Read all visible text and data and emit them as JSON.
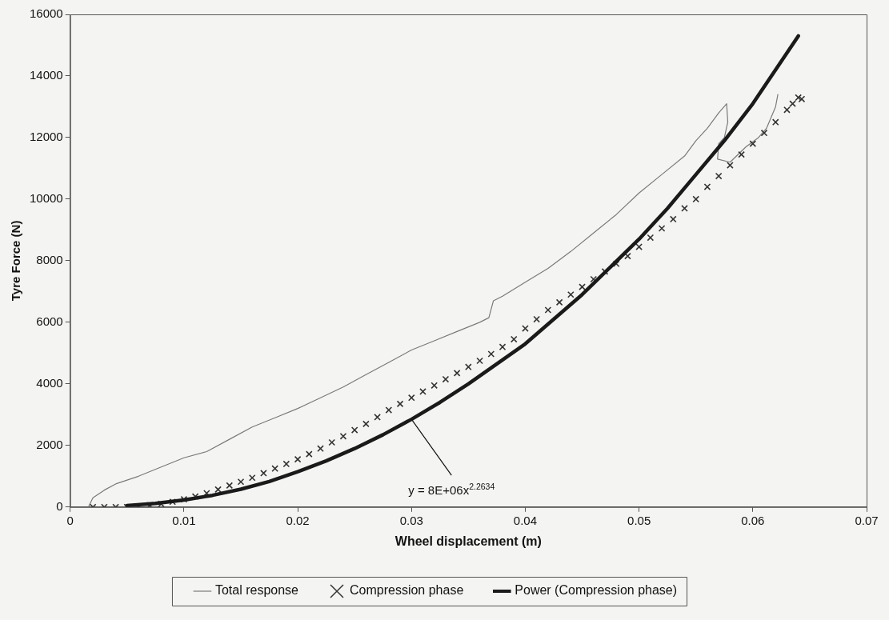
{
  "chart_data": {
    "type": "line",
    "xlabel": "Wheel displacement (m)",
    "ylabel": "Tyre Force (N)",
    "xlim": [
      0,
      0.07
    ],
    "xticks": [
      0,
      0.01,
      0.02,
      0.03,
      0.04,
      0.05,
      0.06,
      0.07
    ],
    "ylim": [
      0,
      16000
    ],
    "yticks": [
      0,
      2000,
      4000,
      6000,
      8000,
      10000,
      12000,
      14000,
      16000
    ],
    "legend": "bottom",
    "annotations": [
      {
        "text": "y = 8E+06x$^{2.2634}$",
        "x": 0.03,
        "y": 2850
      }
    ],
    "series": [
      {
        "name": "Total response",
        "color": "#7a7a7a",
        "marker": "none",
        "x": [
          0.0016,
          0.002,
          0.003,
          0.004,
          0.006,
          0.008,
          0.01,
          0.012,
          0.014,
          0.016,
          0.018,
          0.02,
          0.022,
          0.024,
          0.026,
          0.028,
          0.03,
          0.032,
          0.034,
          0.036,
          0.0368,
          0.0372,
          0.038,
          0.04,
          0.042,
          0.044,
          0.046,
          0.048,
          0.05,
          0.052,
          0.054,
          0.055,
          0.056,
          0.057,
          0.0577,
          0.0578,
          0.0575,
          0.057,
          0.0569,
          0.058,
          0.0594,
          0.0605,
          0.0612,
          0.062,
          0.0622
        ],
        "values": [
          0,
          300,
          550,
          750,
          1000,
          1300,
          1600,
          1800,
          2200,
          2600,
          2900,
          3200,
          3550,
          3900,
          4300,
          4700,
          5100,
          5400,
          5700,
          6000,
          6150,
          6700,
          6850,
          7300,
          7750,
          8300,
          8900,
          9500,
          10200,
          10800,
          11400,
          11900,
          12300,
          12800,
          13100,
          12500,
          12000,
          11800,
          11300,
          11200,
          11700,
          12000,
          12300,
          13000,
          13400
        ]
      },
      {
        "name": "Compression phase",
        "type": "scatter",
        "color": "#333333",
        "marker": "cross",
        "x": [
          0.002,
          0.003,
          0.004,
          0.005,
          0.006,
          0.007,
          0.008,
          0.009,
          0.01,
          0.011,
          0.012,
          0.013,
          0.014,
          0.015,
          0.016,
          0.017,
          0.018,
          0.019,
          0.02,
          0.021,
          0.022,
          0.023,
          0.024,
          0.025,
          0.026,
          0.027,
          0.028,
          0.029,
          0.03,
          0.031,
          0.032,
          0.033,
          0.034,
          0.035,
          0.036,
          0.037,
          0.038,
          0.039,
          0.04,
          0.041,
          0.042,
          0.043,
          0.044,
          0.045,
          0.046,
          0.047,
          0.048,
          0.049,
          0.05,
          0.051,
          0.052,
          0.053,
          0.054,
          0.055,
          0.056,
          0.057,
          0.058,
          0.059,
          0.06,
          0.061,
          0.062,
          0.063,
          0.0635,
          0.064,
          0.0643
        ],
        "values": [
          0,
          0,
          0,
          0,
          20,
          60,
          100,
          170,
          250,
          340,
          450,
          570,
          700,
          820,
          950,
          1100,
          1250,
          1400,
          1550,
          1720,
          1900,
          2100,
          2300,
          2500,
          2700,
          2920,
          3150,
          3350,
          3550,
          3750,
          3950,
          4150,
          4350,
          4550,
          4750,
          4970,
          5200,
          5450,
          5800,
          6100,
          6400,
          6650,
          6900,
          7150,
          7400,
          7650,
          7900,
          8150,
          8450,
          8750,
          9050,
          9350,
          9700,
          10000,
          10400,
          10750,
          11100,
          11450,
          11800,
          12150,
          12500,
          12900,
          13100,
          13300,
          13250
        ]
      },
      {
        "name": "Power (Compression phase)",
        "color": "#1a1a1a",
        "marker": "none",
        "x": [
          0.005,
          0.0075,
          0.01,
          0.0125,
          0.015,
          0.0175,
          0.02,
          0.0225,
          0.025,
          0.0275,
          0.03,
          0.0325,
          0.035,
          0.0375,
          0.04,
          0.0425,
          0.045,
          0.0475,
          0.05,
          0.0525,
          0.055,
          0.0575,
          0.06,
          0.062,
          0.064
        ],
        "values": [
          50,
          120,
          230,
          380,
          580,
          830,
          1150,
          1500,
          1900,
          2350,
          2850,
          3400,
          4000,
          4650,
          5300,
          6100,
          6900,
          7800,
          8700,
          9700,
          10800,
          11900,
          13100,
          14200,
          15300
        ]
      }
    ]
  }
}
